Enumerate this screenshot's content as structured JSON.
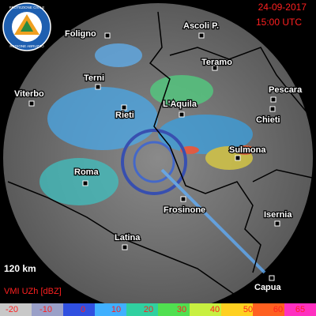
{
  "header": {
    "date": "24-09-2017",
    "time": "15:00 UTC"
  },
  "logo": {
    "top": "PROTEZIONE CIVILE",
    "bottom": "REGIONE ABRUZZO"
  },
  "cities": [
    {
      "label": "Foligno"
    },
    {
      "label": "Ascoli P."
    },
    {
      "label": "Teramo"
    },
    {
      "label": "Pescara"
    },
    {
      "label": "Terni"
    },
    {
      "label": "Viterbo"
    },
    {
      "label": "Rieti"
    },
    {
      "label": "L'Aquila"
    },
    {
      "label": "Chieti"
    },
    {
      "label": "Sulmona"
    },
    {
      "label": "Roma"
    },
    {
      "label": "Frosinone"
    },
    {
      "label": "Isernia"
    },
    {
      "label": "Latina"
    },
    {
      "label": "Capua"
    }
  ],
  "scale": "120 km",
  "legend": {
    "title": "VMI UZh [dBZ]",
    "ticks": [
      -20,
      -10,
      0,
      10,
      20,
      30,
      40,
      50,
      60,
      65
    ],
    "colors": [
      "#c8c8c8",
      "#9aa0c8",
      "#3050e0",
      "#40b0ff",
      "#30d0a0",
      "#50e050",
      "#c8f040",
      "#ffd020",
      "#ff6020",
      "#ff30c0"
    ]
  }
}
